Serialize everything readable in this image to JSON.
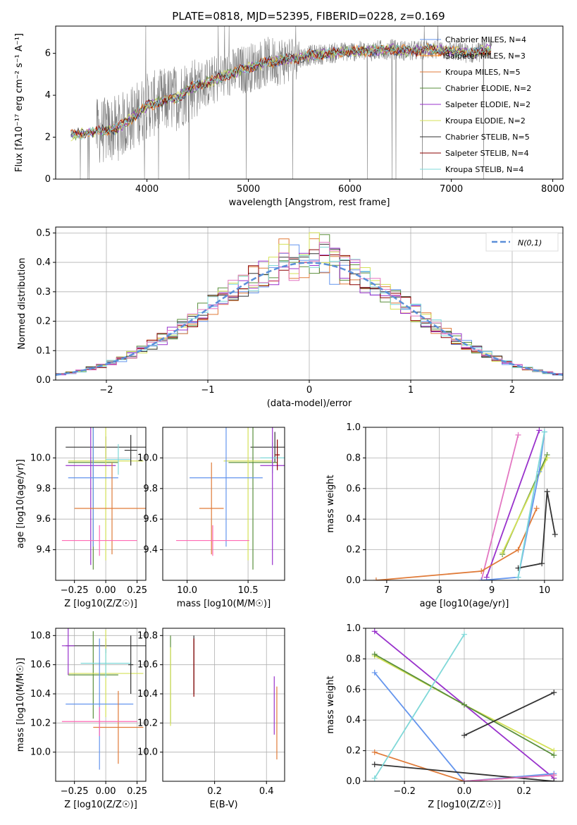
{
  "figure": {
    "title": "PLATE=0818, MJD=52395, FIBERID=0228, z=0.169"
  },
  "chart_data": [
    {
      "id": "spectrum",
      "type": "line",
      "xlabel": "wavelength [Angstrom, rest frame]",
      "ylabel": "Flux [fλ10⁻¹⁷ erg cm⁻² s⁻¹ A⁻¹]",
      "xlim": [
        3100,
        8100
      ],
      "ylim": [
        0,
        7.3
      ],
      "xticks": [
        4000,
        5000,
        6000,
        7000,
        8000
      ],
      "yticks": [
        0,
        2,
        4,
        6
      ],
      "grid": false,
      "legend_position": "top-right",
      "series": [
        {
          "name": "Chabrier MILES, N_SSP=4",
          "color": "#6495ed"
        },
        {
          "name": "Salpeter MILES, N_SSP=3",
          "color": "#ff7f0e"
        },
        {
          "name": "Kroupa MILES, N_SSP=5",
          "color": "#e07b39"
        },
        {
          "name": "Chabrier ELODIE, N_SSP=2",
          "color": "#5a8f3c"
        },
        {
          "name": "Salpeter ELODIE, N_SSP=2",
          "color": "#9932cc"
        },
        {
          "name": "Kroupa ELODIE, N_SSP=2",
          "color": "#d4e157"
        },
        {
          "name": "Chabrier STELIB, N_SSP=5",
          "color": "#333333"
        },
        {
          "name": "Salpeter STELIB, N_SSP=4",
          "color": "#8b0000"
        },
        {
          "name": "Kroupa STELIB, N_SSP=4",
          "color": "#7fd8d8"
        }
      ],
      "model_curve": {
        "x": [
          3250,
          3400,
          3550,
          3700,
          3850,
          4000,
          4150,
          4300,
          4450,
          4600,
          4800,
          5000,
          5200,
          5400,
          5600,
          5800,
          6000,
          6200,
          6400,
          6600,
          6800,
          7000,
          7200,
          7400
        ],
        "y": [
          2.1,
          2.2,
          2.3,
          2.4,
          2.9,
          3.5,
          3.7,
          3.9,
          4.4,
          4.6,
          5.0,
          5.3,
          5.6,
          5.7,
          5.9,
          6.0,
          6.1,
          6.1,
          6.2,
          6.1,
          6.2,
          6.1,
          6.0,
          6.2
        ]
      }
    },
    {
      "id": "residuals",
      "type": "histogram",
      "xlabel": "(data-model)/error",
      "ylabel": "Normed distribution",
      "xlim": [
        -2.5,
        2.5
      ],
      "ylim": [
        0,
        0.52
      ],
      "xticks": [
        -2,
        -1,
        0,
        1,
        2
      ],
      "yticks": [
        0.0,
        0.1,
        0.2,
        0.3,
        0.4,
        0.5
      ],
      "grid": true,
      "legend": "N(0,1)",
      "legend_position": "top-right",
      "bin_width": 0.1
    },
    {
      "id": "age_vs_Z",
      "type": "errorbar",
      "xlabel": "Z [log10(Z/Z☉)]",
      "ylabel": "age [log10(age/yr)]",
      "xlim": [
        -0.4,
        0.32
      ],
      "ylim": [
        9.2,
        10.2
      ],
      "xticks": [
        -0.25,
        0.0,
        0.25
      ],
      "yticks": [
        9.4,
        9.6,
        9.8,
        10.0
      ],
      "points": [
        {
          "x": 0.0,
          "y": 10.07,
          "xerr": 0.32,
          "yerr": 0.07,
          "color": "#333333"
        },
        {
          "x": -0.1,
          "y": 9.97,
          "xerr": 0.2,
          "yerr": 0.7,
          "color": "#5a8f3c"
        },
        {
          "x": 0.0,
          "y": 9.98,
          "xerr": 0.3,
          "yerr": 0.65,
          "color": "#d4e157"
        },
        {
          "x": 0.1,
          "y": 9.99,
          "xerr": 0.1,
          "yerr": 0.1,
          "color": "#7fd8d8"
        },
        {
          "x": -0.12,
          "y": 9.95,
          "xerr": 0.2,
          "yerr": 0.65,
          "color": "#9932cc"
        },
        {
          "x": -0.1,
          "y": 9.87,
          "xerr": 0.2,
          "yerr": 0.45,
          "color": "#6495ed"
        },
        {
          "x": 0.05,
          "y": 9.67,
          "xerr": 0.3,
          "yerr": 0.3,
          "color": "#e07b39"
        },
        {
          "x": -0.05,
          "y": 9.46,
          "xerr": 0.3,
          "yerr": 0.1,
          "color": "#ff69b4"
        },
        {
          "x": 0.2,
          "y": 10.05,
          "xerr": 0.05,
          "yerr": 0.1,
          "color": "#333333"
        }
      ]
    },
    {
      "id": "age_vs_mass",
      "type": "errorbar",
      "xlabel": "mass [log10(M/M☉)]",
      "ylabel": "",
      "xlim": [
        9.8,
        10.8
      ],
      "ylim": [
        9.2,
        10.2
      ],
      "xticks": [
        10.0,
        10.5
      ],
      "yticks": [
        9.4,
        9.6,
        9.8,
        10.0
      ],
      "points": [
        {
          "x": 10.72,
          "y": 10.07,
          "xerr": 0.2,
          "yerr": 0.1,
          "color": "#333333"
        },
        {
          "x": 10.54,
          "y": 9.97,
          "xerr": 0.2,
          "yerr": 0.7,
          "color": "#5a8f3c"
        },
        {
          "x": 10.5,
          "y": 9.98,
          "xerr": 0.2,
          "yerr": 0.65,
          "color": "#d4e157"
        },
        {
          "x": 10.7,
          "y": 10.0,
          "xerr": 0.1,
          "yerr": 0.1,
          "color": "#7fd8d8"
        },
        {
          "x": 10.7,
          "y": 9.95,
          "xerr": 0.1,
          "yerr": 0.65,
          "color": "#9932cc"
        },
        {
          "x": 10.32,
          "y": 9.87,
          "xerr": 0.3,
          "yerr": 0.45,
          "color": "#6495ed"
        },
        {
          "x": 10.2,
          "y": 9.67,
          "xerr": 0.1,
          "yerr": 0.3,
          "color": "#e07b39"
        },
        {
          "x": 10.21,
          "y": 9.46,
          "xerr": 0.3,
          "yerr": 0.1,
          "color": "#ff69b4"
        },
        {
          "x": 10.74,
          "y": 10.02,
          "xerr": 0.02,
          "yerr": 0.1,
          "color": "#8b0000"
        }
      ]
    },
    {
      "id": "weight_vs_age",
      "type": "line",
      "xlabel": "age [log10(age/yr)]",
      "ylabel": "mass weight",
      "xlim": [
        6.6,
        10.35
      ],
      "ylim": [
        0,
        1.0
      ],
      "xticks": [
        7,
        8,
        9,
        10
      ],
      "yticks": [
        0.0,
        0.2,
        0.4,
        0.6,
        0.8,
        1.0
      ],
      "grid": true,
      "series": [
        {
          "x": [
            8.8,
            9.5
          ],
          "y": [
            0.0,
            0.95
          ],
          "color": "#e377c2"
        },
        {
          "x": [
            8.9,
            9.9
          ],
          "y": [
            0.02,
            0.98
          ],
          "color": "#9932cc"
        },
        {
          "x": [
            9.2,
            10.05
          ],
          "y": [
            0.17,
            0.82
          ],
          "color": "#5a8f3c"
        },
        {
          "x": [
            9.2,
            10.05
          ],
          "y": [
            0.18,
            0.8
          ],
          "color": "#d4e157"
        },
        {
          "x": [
            6.8,
            8.8,
            9.5,
            9.85
          ],
          "y": [
            0.0,
            0.06,
            0.2,
            0.47
          ],
          "color": "#e07b39"
        },
        {
          "x": [
            8.8,
            9.5,
            9.9,
            10.0
          ],
          "y": [
            0.0,
            0.02,
            0.71,
            0.97
          ],
          "color": "#6495ed"
        },
        {
          "x": [
            9.5,
            9.95,
            10.05,
            10.2
          ],
          "y": [
            0.08,
            0.11,
            0.58,
            0.3
          ],
          "color": "#333333"
        },
        {
          "x": [
            9.5,
            10.0
          ],
          "y": [
            0.02,
            0.97
          ],
          "color": "#7fd8d8"
        }
      ]
    },
    {
      "id": "mass_vs_Z",
      "type": "errorbar",
      "xlabel": "Z [log10(Z/Z☉)]",
      "ylabel": "mass [log10(M/M☉)]",
      "xlim": [
        -0.4,
        0.32
      ],
      "ylim": [
        9.8,
        10.85
      ],
      "xticks": [
        -0.25,
        0.0,
        0.25
      ],
      "yticks": [
        10.0,
        10.2,
        10.4,
        10.6,
        10.8
      ],
      "points": [
        {
          "x": 0.0,
          "y": 10.73,
          "xerr": 0.32,
          "yerr": 0.05,
          "color": "#333333"
        },
        {
          "x": -0.1,
          "y": 10.53,
          "xerr": 0.2,
          "yerr": 0.3,
          "color": "#5a8f3c"
        },
        {
          "x": 0.0,
          "y": 10.54,
          "xerr": 0.3,
          "yerr": 0.3,
          "color": "#d4e157"
        },
        {
          "x": 0.0,
          "y": 10.61,
          "xerr": 0.2,
          "yerr": 0.1,
          "color": "#7fd8d8"
        },
        {
          "x": -0.3,
          "y": 10.73,
          "xerr": 0.05,
          "yerr": 0.2,
          "color": "#9932cc"
        },
        {
          "x": -0.05,
          "y": 10.33,
          "xerr": 0.27,
          "yerr": 0.45,
          "color": "#6495ed"
        },
        {
          "x": 0.1,
          "y": 10.17,
          "xerr": 0.2,
          "yerr": 0.25,
          "color": "#e07b39"
        },
        {
          "x": -0.05,
          "y": 10.21,
          "xerr": 0.3,
          "yerr": 0.1,
          "color": "#ff69b4"
        },
        {
          "x": 0.2,
          "y": 10.6,
          "xerr": 0.02,
          "yerr": 0.2,
          "color": "#333333"
        }
      ]
    },
    {
      "id": "mass_vs_EBV",
      "type": "errorbar",
      "xlabel": "E(B-V)",
      "ylabel": "",
      "xlim": [
        0.0,
        0.47
      ],
      "ylim": [
        9.8,
        10.85
      ],
      "xticks": [
        0.2,
        0.4
      ],
      "yticks": [
        10.0,
        10.2,
        10.4,
        10.6,
        10.8
      ],
      "points": [
        {
          "x": 0.03,
          "y": 10.5,
          "xerr": 0.0,
          "yerr": 0.3,
          "color": "#5a8f3c"
        },
        {
          "x": 0.03,
          "y": 10.45,
          "xerr": 0.0,
          "yerr": 0.27,
          "color": "#d4e157"
        },
        {
          "x": 0.12,
          "y": 10.6,
          "xerr": 0.0,
          "yerr": 0.2,
          "color": "#333333"
        },
        {
          "x": 0.12,
          "y": 10.58,
          "xerr": 0.0,
          "yerr": 0.2,
          "color": "#8b0000"
        },
        {
          "x": 0.44,
          "y": 10.2,
          "xerr": 0.0,
          "yerr": 0.25,
          "color": "#e07b39"
        },
        {
          "x": 0.43,
          "y": 10.32,
          "xerr": 0.0,
          "yerr": 0.2,
          "color": "#9932cc"
        }
      ]
    },
    {
      "id": "weight_vs_Z",
      "type": "line",
      "xlabel": "Z [log10(Z/Z☉)]",
      "ylabel": "mass weight",
      "xlim": [
        -0.33,
        0.33
      ],
      "ylim": [
        0,
        1.0
      ],
      "xticks": [
        -0.2,
        0.0,
        0.2
      ],
      "yticks": [
        0.0,
        0.2,
        0.4,
        0.6,
        0.8,
        1.0
      ],
      "grid": true,
      "series": [
        {
          "x": [
            -0.3,
            0.0,
            0.3
          ],
          "y": [
            0.98,
            0.5,
            0.02
          ],
          "color": "#9932cc"
        },
        {
          "x": [
            -0.3,
            0.0,
            0.3
          ],
          "y": [
            0.82,
            0.5,
            0.2
          ],
          "color": "#d4e157"
        },
        {
          "x": [
            -0.3,
            0.0,
            0.3
          ],
          "y": [
            0.83,
            0.5,
            0.17
          ],
          "color": "#5a8f3c"
        },
        {
          "x": [
            -0.3,
            0.0,
            0.3
          ],
          "y": [
            0.71,
            0.0,
            0.05
          ],
          "color": "#6495ed"
        },
        {
          "x": [
            -0.3,
            0.0,
            0.3
          ],
          "y": [
            0.19,
            0.0,
            0.04
          ],
          "color": "#e07b39"
        },
        {
          "x": [
            -0.3,
            0.3
          ],
          "y": [
            0.11,
            0.0
          ],
          "color": "#333333"
        },
        {
          "x": [
            0.0,
            0.3
          ],
          "y": [
            0.3,
            0.58
          ],
          "color": "#333333"
        },
        {
          "x": [
            -0.3,
            0.0
          ],
          "y": [
            0.02,
            0.96
          ],
          "color": "#7fd8d8"
        },
        {
          "x": [
            0.0,
            0.3
          ],
          "y": [
            0.0,
            0.04
          ],
          "color": "#e377c2"
        }
      ]
    }
  ]
}
